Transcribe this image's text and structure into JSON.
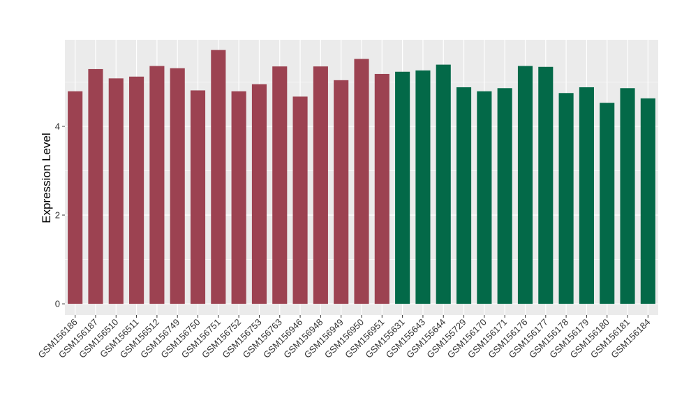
{
  "chart_data": {
    "type": "bar",
    "title": "",
    "xlabel": "",
    "ylabel": "Expression Level",
    "ylim": [
      -0.25,
      5.95
    ],
    "yticks": [
      0,
      2,
      4
    ],
    "grid": true,
    "panel_background": "#EBEBEB",
    "grid_color": "#FFFFFF",
    "categories": [
      "GSM156186",
      "GSM156187",
      "GSM156510",
      "GSM156511",
      "GSM156512",
      "GSM156749",
      "GSM156750",
      "GSM156751",
      "GSM156752",
      "GSM156753",
      "GSM156763",
      "GSM156946",
      "GSM156948",
      "GSM156949",
      "GSM156950",
      "GSM156951",
      "GSM155631",
      "GSM155643",
      "GSM155644",
      "GSM155729",
      "GSM156170",
      "GSM156171",
      "GSM156176",
      "GSM156177",
      "GSM156178",
      "GSM156179",
      "GSM156180",
      "GSM156181",
      "GSM156184"
    ],
    "values": [
      4.79,
      5.29,
      5.08,
      5.12,
      5.36,
      5.31,
      4.81,
      5.72,
      4.79,
      4.95,
      5.35,
      4.67,
      5.35,
      5.04,
      5.52,
      5.18,
      5.23,
      5.26,
      5.39,
      4.88,
      4.79,
      4.86,
      5.36,
      5.34,
      4.75,
      4.88,
      4.53,
      4.86,
      4.63
    ],
    "bar_colors": [
      "#9C4251",
      "#9C4251",
      "#9C4251",
      "#9C4251",
      "#9C4251",
      "#9C4251",
      "#9C4251",
      "#9C4251",
      "#9C4251",
      "#9C4251",
      "#9C4251",
      "#9C4251",
      "#9C4251",
      "#9C4251",
      "#9C4251",
      "#9C4251",
      "#036948",
      "#036948",
      "#036948",
      "#036948",
      "#036948",
      "#036948",
      "#036948",
      "#036948",
      "#036948",
      "#036948",
      "#036948",
      "#036948",
      "#036948"
    ]
  }
}
